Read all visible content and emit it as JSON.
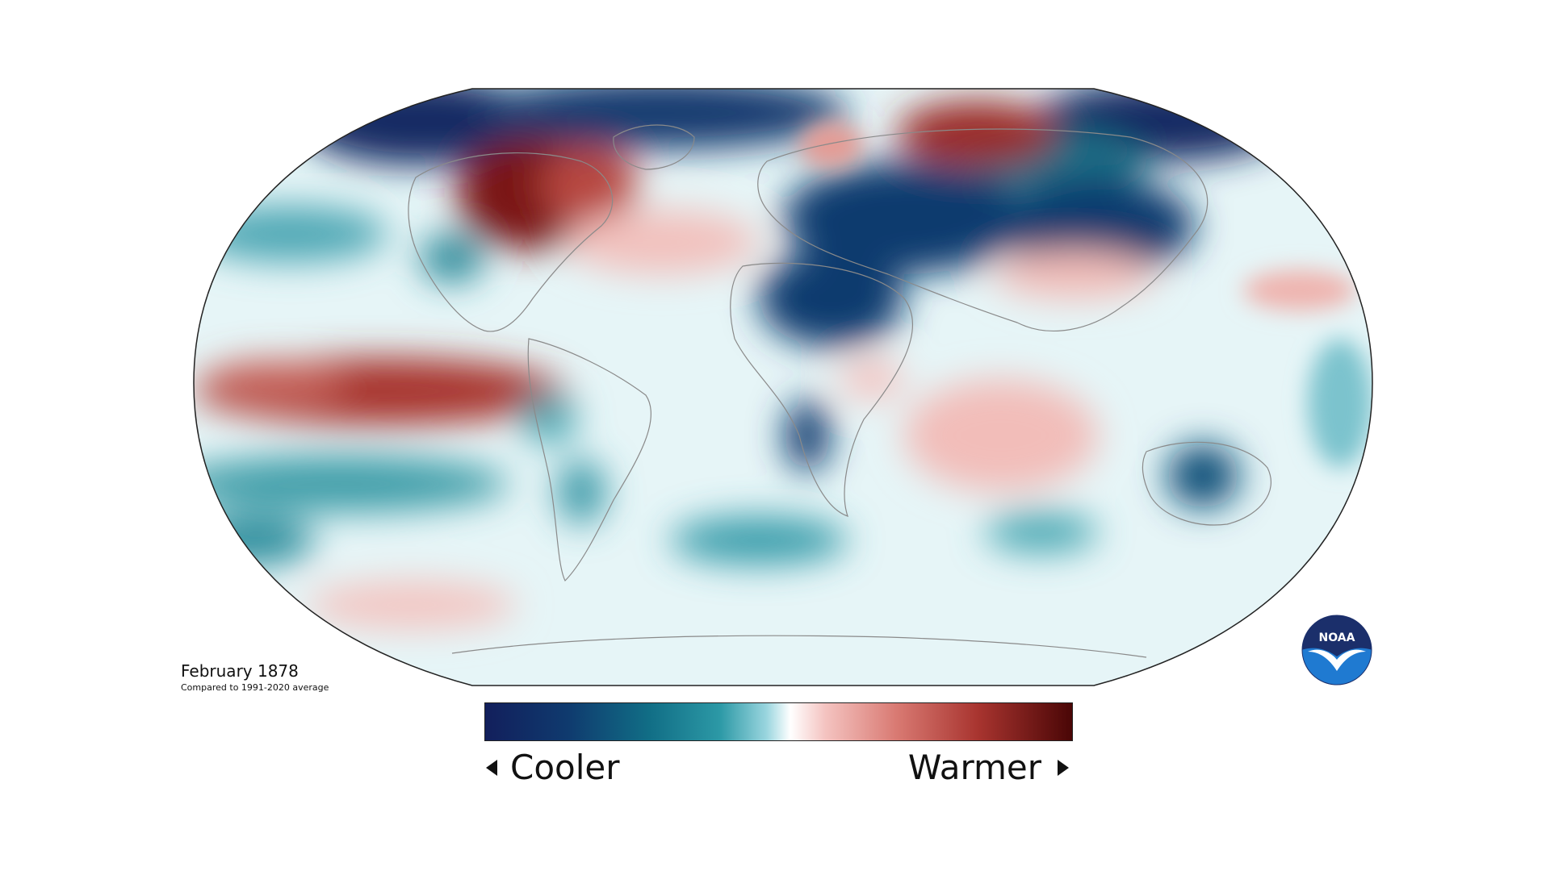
{
  "caption": {
    "title": "February 1878",
    "subtitle": "Compared to 1991-2020 average"
  },
  "legend": {
    "cooler_label": "Cooler",
    "warmer_label": "Warmer",
    "color_scale": [
      "#121f5c",
      "#0f3a6e",
      "#116e86",
      "#2c99a6",
      "#9bd6df",
      "#ffffff",
      "#f4c3c0",
      "#d97a73",
      "#a8342f",
      "#4a0606"
    ]
  },
  "logo": {
    "text": "NOAA",
    "colors": {
      "top": "#1b2f6b",
      "bottom": "#1f7ad1",
      "bird": "#ffffff"
    }
  },
  "map": {
    "projection": "Robinson",
    "background_color": "#e6f5f7",
    "outline_color": "#222222",
    "coastline_color": "#8a8a8a"
  }
}
